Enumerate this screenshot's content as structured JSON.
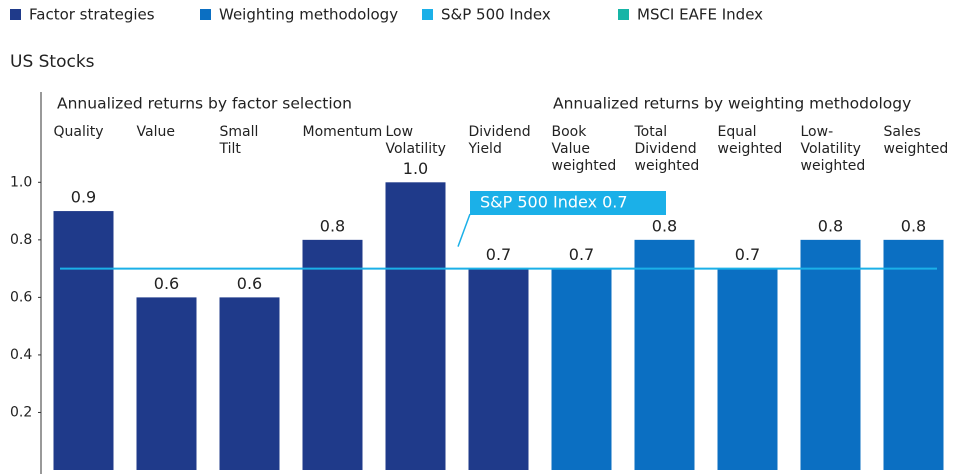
{
  "chart_data": {
    "type": "bar",
    "title": "US Stocks",
    "group_titles": [
      "Annualized returns by factor selection",
      "Annualized returns by weighting methodology"
    ],
    "categories": [
      "Quality",
      "Value",
      "Small Tilt",
      "Momentum",
      "Low Volatility",
      "Dividend Yield",
      "Book Value weighted",
      "Total Dividend weighted",
      "Equal weighted",
      "Low-Volatility weighted",
      "Sales weighted"
    ],
    "series": [
      {
        "name": "Factor strategies",
        "color": "#1f3a8a",
        "values": [
          0.9,
          0.6,
          0.6,
          0.8,
          1,
          0.7,
          null,
          null,
          null,
          null,
          null
        ],
        "value_labels": [
          "0.9",
          "0.6",
          "0.6",
          "0.8",
          "1.0",
          "0.7",
          null,
          null,
          null,
          null,
          null
        ]
      },
      {
        "name": "Weighting methodology",
        "color": "#0b6fc2",
        "values": [
          null,
          null,
          null,
          null,
          null,
          null,
          0.7,
          0.8,
          0.7,
          0.8,
          0.8
        ]
      },
      {
        "name": "S&P 500 Index",
        "color": "#1bb0e8",
        "value": 0.7
      },
      {
        "name": "MSCI EAFE Index",
        "color": "#16b5a6"
      }
    ],
    "annotation": "S&P 500 Index 0.7",
    "ylim": [
      0,
      1.3
    ],
    "yticks": [
      0.2,
      0.4,
      0.6,
      0.8,
      {
        "value": 1,
        "label": "1.0"
      }
    ]
  }
}
